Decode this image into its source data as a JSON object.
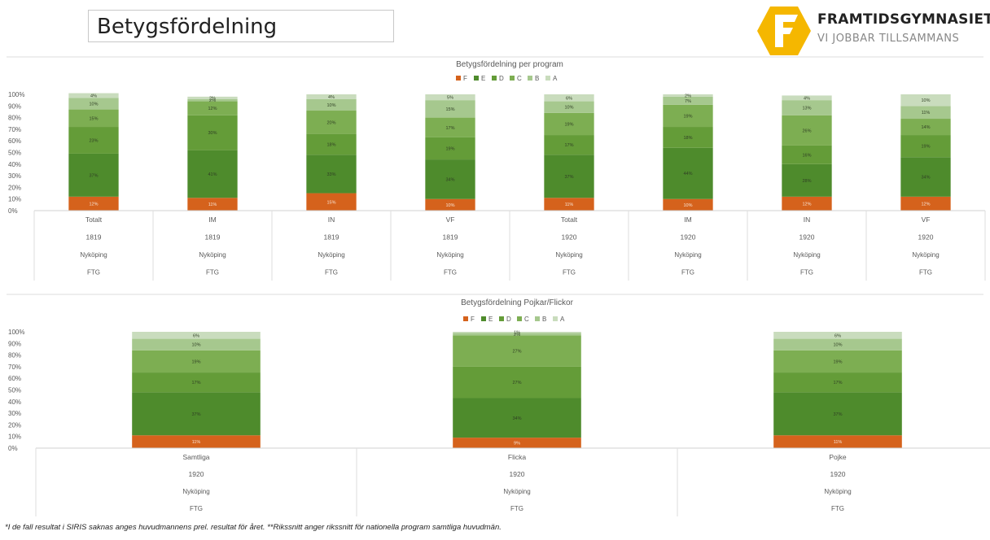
{
  "header": {
    "title": "Betygsfördelning",
    "logo_name": "FRAMTIDSGYMNASIET",
    "logo_tagline": "VI JOBBAR TILLSAMMANS",
    "logo_color": "#f5b700"
  },
  "grade_colors": {
    "F": "#d5621c",
    "E": "#4e8b2c",
    "D": "#649c38",
    "C": "#7dae52",
    "B": "#a6c88e",
    "A": "#c9dcbd"
  },
  "chart_data": [
    {
      "type": "bar",
      "stacked": true,
      "title": "Betygsfördelning per program",
      "legend": [
        "F",
        "E",
        "D",
        "C",
        "B",
        "A"
      ],
      "legend_position": "top",
      "ylim": [
        0,
        100
      ],
      "y_ticks": [
        "0%",
        "10%",
        "20%",
        "30%",
        "40%",
        "50%",
        "60%",
        "70%",
        "80%",
        "90%",
        "100%"
      ],
      "category_levels": [
        [
          "Totalt",
          "IM",
          "IN",
          "VF",
          "Totalt",
          "IM",
          "IN",
          "VF"
        ],
        [
          "1819",
          "1819",
          "1819",
          "1819",
          "1920",
          "1920",
          "1920",
          "1920"
        ],
        [
          "Nyköping",
          "Nyköping",
          "Nyköping",
          "Nyköping",
          "Nyköping",
          "Nyköping",
          "Nyköping",
          "Nyköping"
        ],
        [
          "FTG",
          "FTG",
          "FTG",
          "FTG",
          "FTG",
          "FTG",
          "FTG",
          "FTG"
        ]
      ],
      "series": [
        {
          "name": "F",
          "values": [
            12,
            11,
            15,
            10,
            11,
            10,
            12,
            12
          ]
        },
        {
          "name": "E",
          "values": [
            37,
            41,
            33,
            34,
            37,
            44,
            28,
            34
          ]
        },
        {
          "name": "D",
          "values": [
            23,
            30,
            18,
            19,
            17,
            18,
            16,
            19
          ]
        },
        {
          "name": "C",
          "values": [
            15,
            12,
            20,
            17,
            19,
            19,
            26,
            14
          ]
        },
        {
          "name": "B",
          "values": [
            10,
            2,
            10,
            15,
            10,
            7,
            13,
            11
          ]
        },
        {
          "name": "A",
          "values": [
            4,
            2,
            4,
            5,
            6,
            2,
            4,
            10
          ]
        }
      ],
      "value_labels": [
        [
          "12%",
          "11%",
          "15%",
          "10%",
          "11%",
          "10%",
          "12%",
          "12%"
        ],
        [
          "37%",
          "41%",
          "33%",
          "34%",
          "37%",
          "44%",
          "28%",
          "34%"
        ],
        [
          "23%",
          "30%",
          "18%",
          "19%",
          "17%",
          "18%",
          "16%",
          "19%"
        ],
        [
          "15%",
          "12%",
          "20%",
          "17%",
          "19%",
          "19%",
          "26%",
          "14%"
        ],
        [
          "10%",
          "2%",
          "10%",
          "15%",
          "10%",
          "7%",
          "13%",
          "11%"
        ],
        [
          "4%",
          "2%",
          "4%",
          "5%",
          "6%",
          "2%",
          "4%",
          "10%"
        ]
      ]
    },
    {
      "type": "bar",
      "stacked": true,
      "title": "Betygsfördelning Pojkar/Flickor",
      "legend": [
        "F",
        "E",
        "D",
        "C",
        "B",
        "A"
      ],
      "legend_position": "top",
      "ylim": [
        0,
        100
      ],
      "y_ticks": [
        "0%",
        "10%",
        "20%",
        "30%",
        "40%",
        "50%",
        "60%",
        "70%",
        "80%",
        "90%",
        "100%"
      ],
      "category_levels": [
        [
          "Samtliga",
          "Flicka",
          "Pojke"
        ],
        [
          "1920",
          "1920",
          "1920"
        ],
        [
          "Nyköping",
          "Nyköping",
          "Nyköping"
        ],
        [
          "FTG",
          "FTG",
          "FTG"
        ]
      ],
      "series": [
        {
          "name": "F",
          "values": [
            11,
            9,
            11
          ]
        },
        {
          "name": "E",
          "values": [
            37,
            34,
            37
          ]
        },
        {
          "name": "D",
          "values": [
            17,
            27,
            17
          ]
        },
        {
          "name": "C",
          "values": [
            19,
            27,
            19
          ]
        },
        {
          "name": "B",
          "values": [
            10,
            2,
            10
          ]
        },
        {
          "name": "A",
          "values": [
            6,
            1,
            6
          ]
        }
      ],
      "value_labels": [
        [
          "11%",
          "9%",
          "11%"
        ],
        [
          "37%",
          "34%",
          "37%"
        ],
        [
          "17%",
          "27%",
          "17%"
        ],
        [
          "19%",
          "27%",
          "19%"
        ],
        [
          "10%",
          "2%",
          "10%"
        ],
        [
          "6%",
          "1%",
          "6%"
        ]
      ]
    }
  ],
  "footnote": "*I de fall resultat i SIRIS saknas anges  huvudmannens prel. resultat  för året. **Rikssnitt anger rikssnitt för nationella program samtliga huvudmän."
}
